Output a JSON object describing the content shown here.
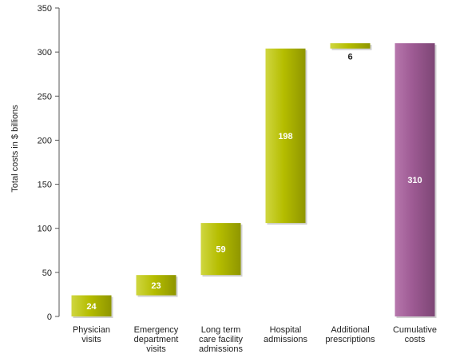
{
  "chart_data": {
    "type": "bar",
    "subtype": "waterfall",
    "ylabel": "Total costs in $ billions",
    "xlabel": "",
    "ylim": [
      0,
      350
    ],
    "yticks": [
      0,
      50,
      100,
      150,
      200,
      250,
      300,
      350
    ],
    "grid": false,
    "legend": "none",
    "categories": [
      [
        "Physician",
        "visits"
      ],
      [
        "Emergency",
        "department",
        "visits"
      ],
      [
        "Long term",
        "care facility",
        "admissions"
      ],
      [
        "Hospital",
        "admissions"
      ],
      [
        "Additional",
        "prescriptions"
      ],
      [
        "Cumulative",
        "costs"
      ]
    ],
    "bars": [
      {
        "start": 0,
        "value": 24,
        "label": "24",
        "kind": "increment"
      },
      {
        "start": 24,
        "value": 23,
        "label": "23",
        "kind": "increment"
      },
      {
        "start": 47,
        "value": 59,
        "label": "59",
        "kind": "increment"
      },
      {
        "start": 106,
        "value": 198,
        "label": "198",
        "kind": "increment"
      },
      {
        "start": 304,
        "value": 6,
        "label": "6",
        "kind": "increment"
      },
      {
        "start": 0,
        "value": 310,
        "label": "310",
        "kind": "total"
      }
    ],
    "colors": {
      "increment": "#b5bd00",
      "increment_highlight": "#cfd640",
      "increment_edge": "#8f9600",
      "total": "#9d5a93",
      "total_highlight": "#b676ac",
      "total_edge": "#7d4675",
      "bar_label": "#ffffff",
      "outside_label": "#222222",
      "axis": "#555555"
    }
  }
}
